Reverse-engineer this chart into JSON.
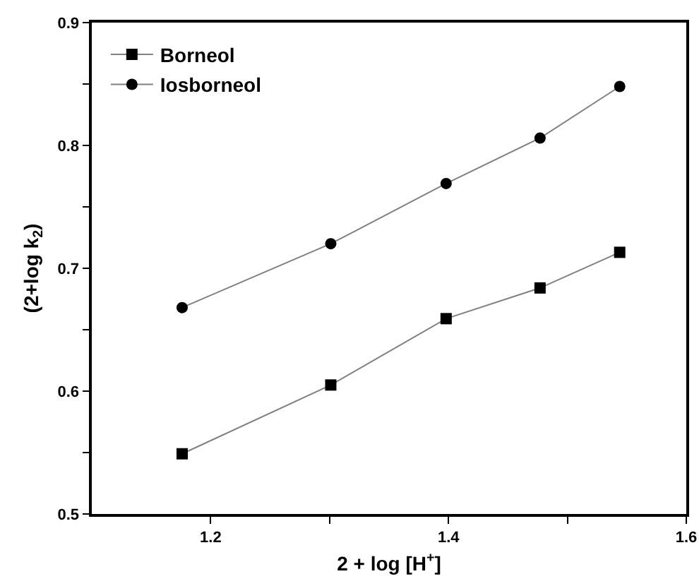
{
  "chart_data": {
    "type": "line",
    "xlabel": "2 + log [H$^{+}$]",
    "ylabel": "(2+log k$_{2}$)",
    "x": [
      1.176,
      1.301,
      1.398,
      1.477,
      1.544
    ],
    "series": [
      {
        "name": "Borneol",
        "color": "#000000",
        "marker": "square",
        "values": [
          0.549,
          0.605,
          0.659,
          0.684,
          0.713
        ]
      },
      {
        "name": "Iosborneol",
        "color": "#000000",
        "marker": "circle",
        "values": [
          0.668,
          0.72,
          0.769,
          0.806,
          0.848
        ]
      }
    ],
    "xlim": [
      1.1,
      1.6
    ],
    "xticks": [
      1.2,
      {
        "value": 1.3,
        "label": null
      },
      1.4,
      {
        "value": 1.5,
        "label": null
      },
      1.6
    ],
    "ylim": [
      0.5,
      0.9
    ],
    "yticks": [
      0.5,
      {
        "value": 0.55,
        "label": null
      },
      0.6,
      {
        "value": 0.65,
        "label": null
      },
      0.7,
      {
        "value": 0.75,
        "label": null
      },
      0.8,
      {
        "value": 0.85,
        "label": null
      },
      0.9
    ],
    "grid": false,
    "legend": "top left",
    "line_style": "solid"
  }
}
